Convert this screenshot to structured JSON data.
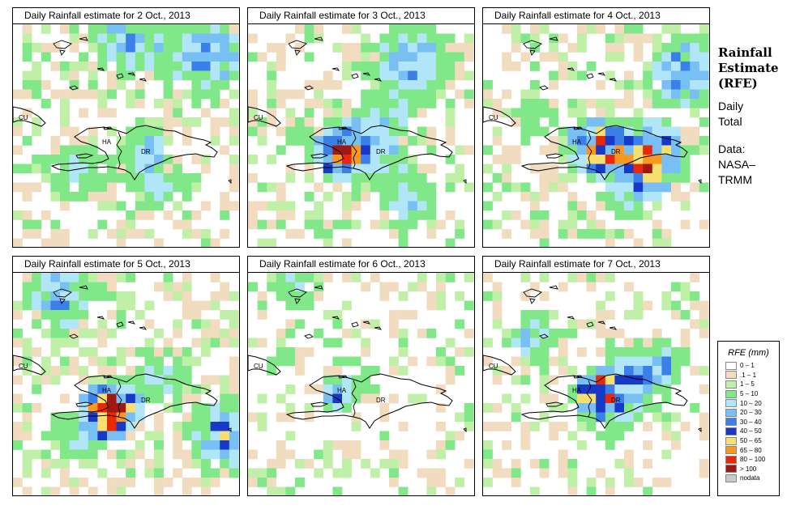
{
  "panels": [
    {
      "title": "Daily Rainfall estimate for  2 Oct., 2013",
      "labels": {
        "cu": "CU",
        "ha": "HA",
        "dr": "DR"
      }
    },
    {
      "title": "Daily Rainfall estimate for  3 Oct., 2013",
      "labels": {
        "cu": "CU",
        "ha": "HA",
        "dr": "DR"
      }
    },
    {
      "title": "Daily Rainfall estimate for  4 Oct., 2013",
      "labels": {
        "cu": "CU",
        "ha": "HA",
        "dr": "DR"
      }
    },
    {
      "title": "Daily Rainfall estimate for  5 Oct., 2013",
      "labels": {
        "cu": "CU",
        "ha": "HA",
        "dr": "DR"
      }
    },
    {
      "title": "Daily Rainfall estimate for  6 Oct., 2013",
      "labels": {
        "cu": "CU",
        "ha": "HA",
        "dr": "DR"
      }
    },
    {
      "title": "Daily Rainfall estimate for  7 Oct., 2013",
      "labels": {
        "cu": "CU",
        "ha": "HA",
        "dr": "DR"
      }
    }
  ],
  "sidebar": {
    "title_line1": "Rainfall",
    "title_line2": "Estimate",
    "title_line3": "(RFE)",
    "daily_line1": "Daily",
    "daily_line2": "Total",
    "data_line1": "Data:",
    "data_line2": "NASA–",
    "data_line3": "TRMM"
  },
  "legend": {
    "title": "RFE (mm)",
    "items": [
      {
        "label": "0 – 1",
        "color": "#ffffff"
      },
      {
        "label": ".1 – 1",
        "color": "#f2dcc0"
      },
      {
        "label": "1 – 5",
        "color": "#c0f0a8"
      },
      {
        "label": "5 – 10",
        "color": "#80e888"
      },
      {
        "label": "10 – 20",
        "color": "#b0e6f8"
      },
      {
        "label": "20 – 30",
        "color": "#78c0f4"
      },
      {
        "label": "30 – 40",
        "color": "#3a80e8"
      },
      {
        "label": "40 – 50",
        "color": "#1838c8"
      },
      {
        "label": "50 – 65",
        "color": "#f8e070"
      },
      {
        "label": "65 – 80",
        "color": "#f89820"
      },
      {
        "label": "80 – 100",
        "color": "#e82808"
      },
      {
        "label": "> 100",
        "color": "#a01810"
      },
      {
        "label": "nodata",
        "color": "#c8c8c8"
      }
    ]
  }
}
